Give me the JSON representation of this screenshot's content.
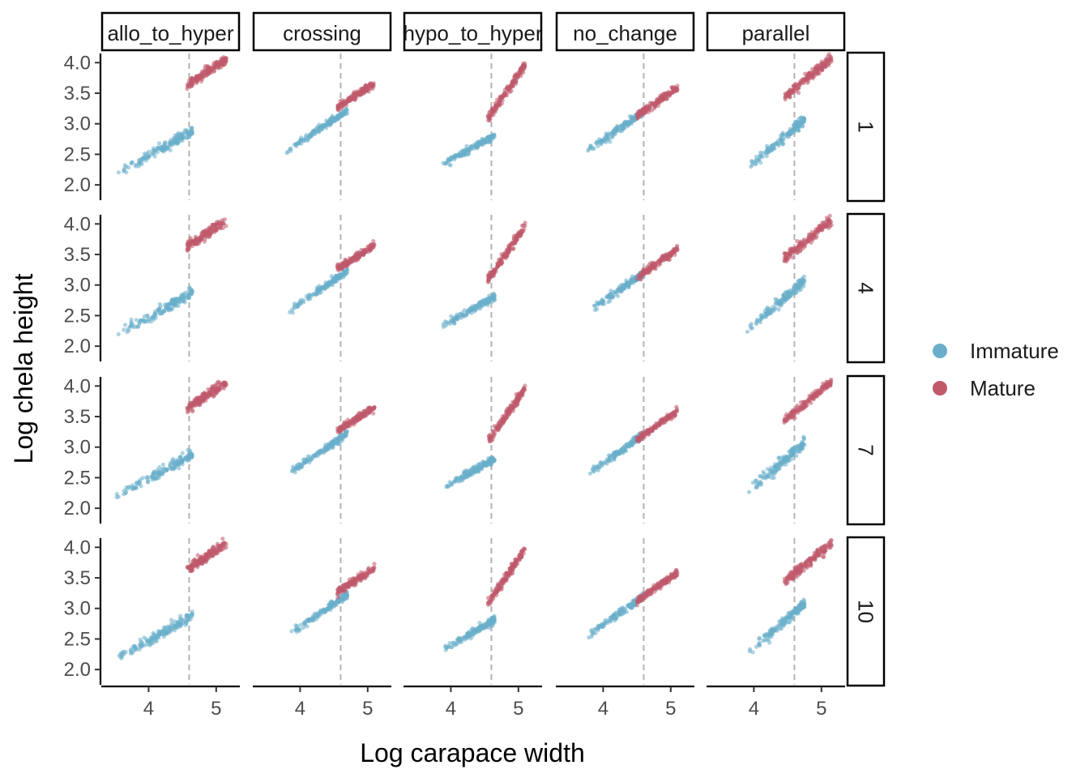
{
  "chart_data": {
    "type": "scatter",
    "xlabel": "Log carapace width",
    "ylabel": "Log chela height",
    "xlim": [
      3.3,
      5.35
    ],
    "ylim": [
      1.75,
      4.15
    ],
    "x_ticks": [
      4,
      5
    ],
    "x_tick_labels": [
      "4",
      "5"
    ],
    "y_ticks": [
      2.0,
      2.5,
      3.0,
      3.5,
      4.0
    ],
    "y_tick_labels": [
      "2.0",
      "2.5",
      "3.0",
      "3.5",
      "4.0"
    ],
    "vline_x": 4.6,
    "legend": {
      "position": "right",
      "entries": [
        {
          "label": "Immature",
          "color": "#6aaecb"
        },
        {
          "label": "Mature",
          "color": "#c05a6b"
        }
      ]
    },
    "column_facets": [
      "allo_to_hyper",
      "crossing",
      "hypo_to_hyper",
      "no_change",
      "parallel"
    ],
    "row_facets": [
      "1",
      "4",
      "7",
      "10"
    ],
    "patterns": {
      "allo_to_hyper": {
        "immature": {
          "x_range": [
            3.5,
            4.65
          ],
          "intercept": 2.85,
          "slope": 0.62,
          "spread": 0.07
        },
        "mature": {
          "x_range": [
            4.57,
            5.15
          ],
          "intercept": 3.66,
          "slope": 0.72,
          "spread": 0.07
        }
      },
      "crossing": {
        "immature": {
          "x_range": [
            3.8,
            4.7
          ],
          "intercept": 3.15,
          "slope": 0.75,
          "spread": 0.05
        },
        "mature": {
          "x_range": [
            4.55,
            5.1
          ],
          "intercept": 3.3,
          "slope": 0.72,
          "spread": 0.05
        }
      },
      "hypo_to_hyper": {
        "immature": {
          "x_range": [
            3.85,
            4.65
          ],
          "intercept": 2.78,
          "slope": 0.62,
          "spread": 0.05
        },
        "mature": {
          "x_range": [
            4.55,
            5.1
          ],
          "intercept": 3.17,
          "slope": 1.6,
          "spread": 0.06
        }
      },
      "no_change": {
        "immature": {
          "x_range": [
            3.75,
            4.6
          ],
          "intercept": 3.2,
          "slope": 0.78,
          "spread": 0.05
        },
        "mature": {
          "x_range": [
            4.5,
            5.1
          ],
          "intercept": 3.2,
          "slope": 0.78,
          "spread": 0.05
        }
      },
      "parallel": {
        "immature": {
          "x_range": [
            3.9,
            4.75
          ],
          "intercept": 2.93,
          "slope": 0.95,
          "spread": 0.07
        },
        "mature": {
          "x_range": [
            4.45,
            5.15
          ],
          "intercept": 3.57,
          "slope": 0.9,
          "spread": 0.07
        }
      }
    },
    "points_per_group": 160
  }
}
